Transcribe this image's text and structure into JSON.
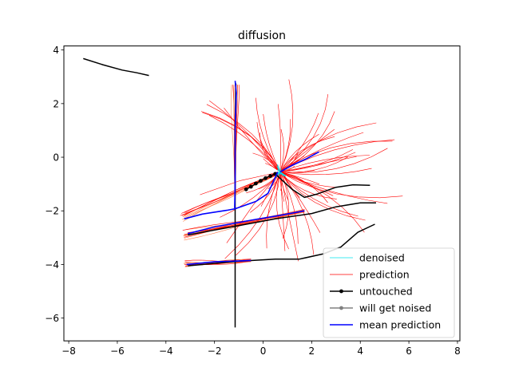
{
  "chart_data": {
    "type": "line",
    "title": "diffusion",
    "xlabel": "",
    "ylabel": "",
    "xlim": [
      -8.2,
      8.1
    ],
    "ylim": [
      -6.85,
      4.15
    ],
    "grid": false,
    "legend_position": "lower-right",
    "x_ticks": [
      -8,
      -6,
      -4,
      -2,
      0,
      2,
      4,
      6,
      8
    ],
    "x_tick_labels": [
      "−8",
      "−6",
      "−4",
      "−2",
      "0",
      "2",
      "4",
      "6",
      "8"
    ],
    "y_ticks": [
      -6,
      -4,
      -2,
      0,
      2,
      4
    ],
    "y_tick_labels": [
      "−6",
      "−4",
      "−2",
      "0",
      "2",
      "4"
    ],
    "colors": {
      "denoised": "#00e5ee",
      "prediction": "#ff0000",
      "prediction_light": "#ff7f50",
      "untouched": "#000000",
      "will_get_noised": "#808080",
      "mean_prediction": "#0000ff"
    },
    "legend": [
      {
        "label": "denoised",
        "color": "#00e5ee",
        "marker": false
      },
      {
        "label": "prediction",
        "color": "#ff0000",
        "marker": false
      },
      {
        "label": "untouched",
        "color": "#000000",
        "marker": true
      },
      {
        "label": "will get noised",
        "color": "#808080",
        "marker": true
      },
      {
        "label": "mean prediction",
        "color": "#0000ff",
        "marker": false
      }
    ],
    "series": [
      {
        "name": "untouched",
        "color": "#000000",
        "segments": [
          {
            "points": [
              [
                -7.4,
                3.68
              ],
              [
                -6.6,
                3.45
              ],
              [
                -5.8,
                3.25
              ],
              [
                -5.2,
                3.15
              ],
              [
                -4.7,
                3.05
              ]
            ]
          },
          {
            "points": [
              [
                -1.15,
                -6.35
              ],
              [
                -1.15,
                -4.0
              ],
              [
                -1.15,
                -2.5
              ],
              [
                -1.15,
                -0.5
              ],
              [
                -1.15,
                1.0
              ],
              [
                -1.12,
                2.75
              ]
            ]
          },
          {
            "points": [
              [
                -0.7,
                -1.2
              ],
              [
                -0.5,
                -1.1
              ],
              [
                -0.3,
                -0.98
              ],
              [
                -0.1,
                -0.88
              ],
              [
                0.1,
                -0.78
              ],
              [
                0.3,
                -0.7
              ],
              [
                0.5,
                -0.62
              ]
            ],
            "markers": true
          },
          {
            "points": [
              [
                0.5,
                -0.62
              ],
              [
                1.2,
                -1.2
              ],
              [
                1.7,
                -1.5
              ],
              [
                2.2,
                -1.38
              ],
              [
                3.0,
                -1.12
              ],
              [
                3.7,
                -1.03
              ],
              [
                4.4,
                -1.05
              ]
            ]
          },
          {
            "points": [
              [
                -3.1,
                -2.9
              ],
              [
                -1.0,
                -2.55
              ],
              [
                0.5,
                -2.3
              ],
              [
                2.0,
                -2.1
              ],
              [
                3.0,
                -1.85
              ],
              [
                4.0,
                -1.7
              ],
              [
                4.65,
                -1.7
              ]
            ]
          },
          {
            "points": [
              [
                -3.1,
                -4.05
              ],
              [
                -1.0,
                -3.88
              ],
              [
                0.5,
                -3.8
              ],
              [
                1.5,
                -3.8
              ],
              [
                2.5,
                -3.6
              ],
              [
                3.2,
                -3.35
              ],
              [
                3.9,
                -2.8
              ],
              [
                4.6,
                -2.5
              ]
            ]
          }
        ]
      },
      {
        "name": "mean prediction",
        "color": "#0000ff",
        "segments": [
          {
            "points": [
              [
                -1.15,
                2.85
              ],
              [
                -1.1,
                2.4
              ],
              [
                -1.12,
                1.8
              ],
              [
                -1.15,
                1.0
              ],
              [
                -1.15,
                0.0
              ],
              [
                -1.15,
                -1.0
              ],
              [
                -1.17,
                -1.9
              ]
            ]
          },
          {
            "points": [
              [
                -3.25,
                -2.3
              ],
              [
                -2.5,
                -2.12
              ],
              [
                -1.5,
                -1.98
              ],
              [
                -1.15,
                -1.92
              ],
              [
                -0.3,
                -1.65
              ],
              [
                0.2,
                -1.35
              ],
              [
                0.6,
                -0.55
              ]
            ]
          },
          {
            "points": [
              [
                -3.1,
                -2.85
              ],
              [
                -2.0,
                -2.6
              ],
              [
                -0.5,
                -2.35
              ],
              [
                0.8,
                -2.15
              ],
              [
                1.7,
                -2.0
              ]
            ]
          },
          {
            "points": [
              [
                -3.15,
                -4.0
              ],
              [
                -2.0,
                -3.9
              ],
              [
                -1.0,
                -3.87
              ],
              [
                -0.5,
                -3.85
              ]
            ]
          },
          {
            "points": [
              [
                0.7,
                -0.55
              ],
              [
                1.2,
                -0.3
              ],
              [
                1.8,
                -0.05
              ],
              [
                2.3,
                0.2
              ]
            ]
          }
        ]
      }
    ],
    "prediction_fans": [
      {
        "from": [
          -1.15,
          2.7
        ],
        "spread_x": [
          -0.15,
          0.15
        ],
        "to_y": -1.85,
        "count": 10,
        "kind": "vertical"
      },
      {
        "from": [
          -3.3,
          -2.25
        ],
        "to": [
          0.6,
          -0.6
        ],
        "count": 12,
        "kind": "bundle"
      },
      {
        "from": [
          -3.2,
          -2.9
        ],
        "to": [
          1.7,
          -2.0
        ],
        "count": 12,
        "kind": "bundle"
      },
      {
        "from": [
          -3.2,
          -4.05
        ],
        "to": [
          -0.5,
          -3.85
        ],
        "count": 10,
        "kind": "bundle"
      }
    ],
    "prediction_burst_center": [
      0.7,
      -0.55
    ]
  }
}
